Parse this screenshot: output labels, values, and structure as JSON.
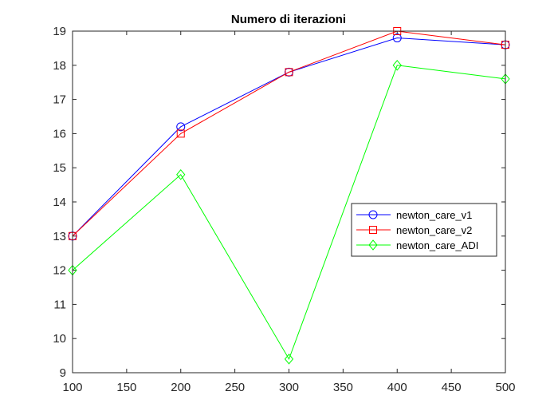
{
  "chart_data": {
    "type": "line",
    "title": "Numero di iterazioni",
    "xlabel": "",
    "ylabel": "",
    "x": [
      100,
      200,
      300,
      400,
      500
    ],
    "xlim": [
      100,
      500
    ],
    "ylim": [
      9,
      19
    ],
    "xticks": [
      100,
      150,
      200,
      250,
      300,
      350,
      400,
      450,
      500
    ],
    "yticks": [
      9,
      10,
      11,
      12,
      13,
      14,
      15,
      16,
      17,
      18,
      19
    ],
    "grid": false,
    "legend_position": "right, mid-height",
    "series": [
      {
        "name": "newton_care_v1",
        "values": [
          13,
          16.2,
          17.8,
          18.8,
          18.6
        ],
        "color": "#0000ff",
        "marker": "circle"
      },
      {
        "name": "newton_care_v2",
        "values": [
          13,
          16,
          17.8,
          19,
          18.6
        ],
        "color": "#ff0000",
        "marker": "square"
      },
      {
        "name": "newton_care_ADI",
        "values": [
          12,
          14.8,
          9.4,
          18,
          17.6
        ],
        "color": "#00ff00",
        "marker": "diamond"
      }
    ]
  }
}
